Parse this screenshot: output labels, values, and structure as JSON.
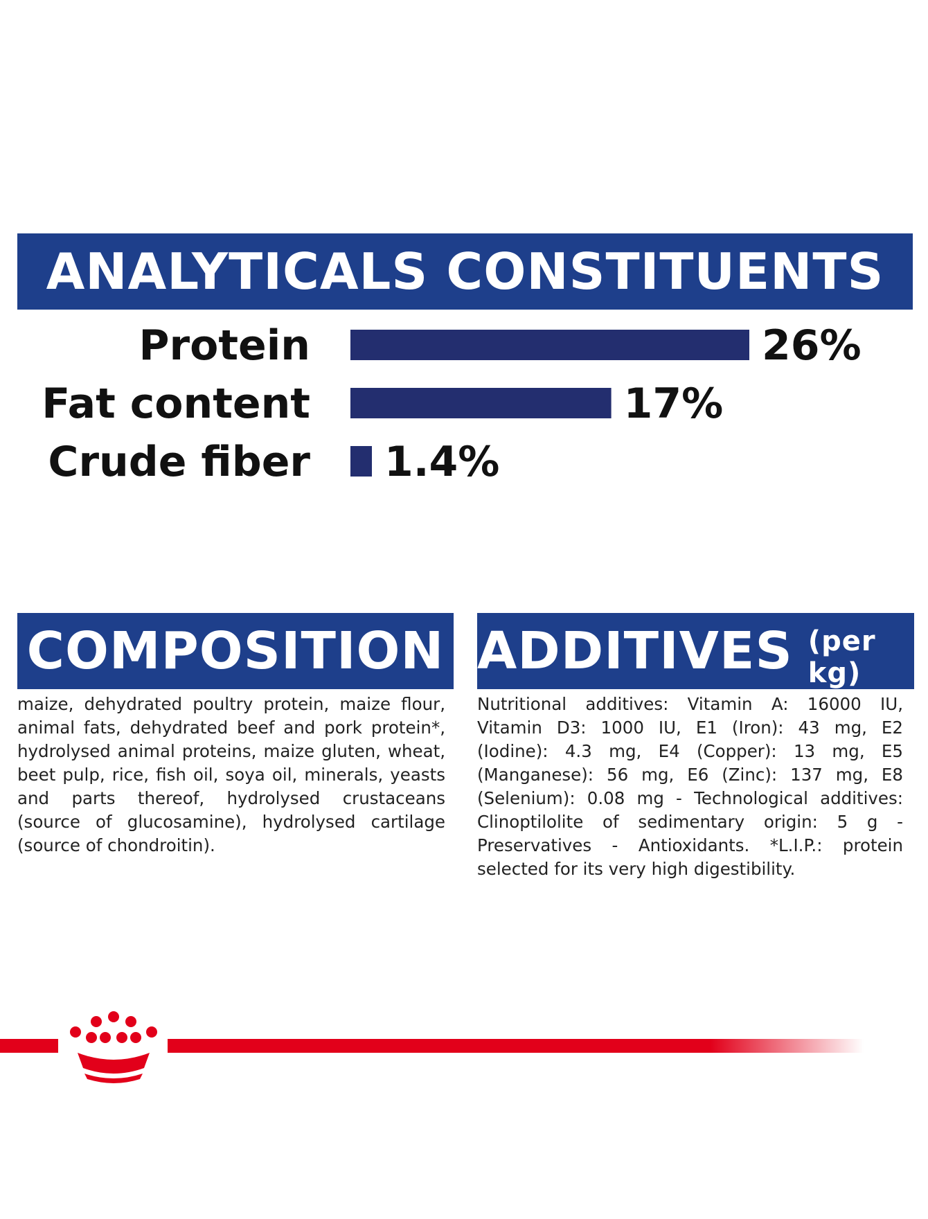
{
  "analytical": {
    "title": "ANALYTICALS CONSTITUENTS"
  },
  "chart_data": {
    "type": "bar",
    "orientation": "horizontal",
    "categories": [
      "Protein",
      "Fat content",
      "Crude fiber"
    ],
    "values": [
      26,
      17,
      1.4
    ],
    "value_labels": [
      "26%",
      "17%",
      "1.4%"
    ],
    "unit": "%",
    "xlim": [
      0,
      26
    ],
    "grid": false,
    "color": "#232e6f"
  },
  "composition": {
    "title": "COMPOSITION",
    "text": "maize, dehydrated poultry protein, maize flour, animal fats, dehydrated beef and pork protein*, hydrolysed animal proteins, maize gluten, wheat, beet pulp, rice, fish oil, soya oil, minerals, yeasts and parts thereof, hydrolysed crustaceans (source of glucosamine), hydrolysed cartilage (source of chondroitin)."
  },
  "additives": {
    "title": "ADDITIVES",
    "unit": "(per kg)",
    "text": "Nutritional additives: Vitamin A: 16000 IU, Vitamin D3: 1000 IU, E1 (Iron): 43 mg, E2 (Iodine): 4.3 mg, E4 (Copper): 13 mg, E5 (Manganese): 56 mg, E6 (Zinc): 137 mg, E8 (Selenium): 0.08 mg - Technological additives: Clinoptilolite of sedimentary origin: 5 g - Preservatives - Antioxidants. *L.I.P.: protein selected for its very high digestibility."
  },
  "colors": {
    "banner": "#1e3f8b",
    "bar": "#232e6f",
    "brand_red": "#e2001a"
  },
  "icons": {
    "logo": "royal-canin-crown-icon"
  }
}
